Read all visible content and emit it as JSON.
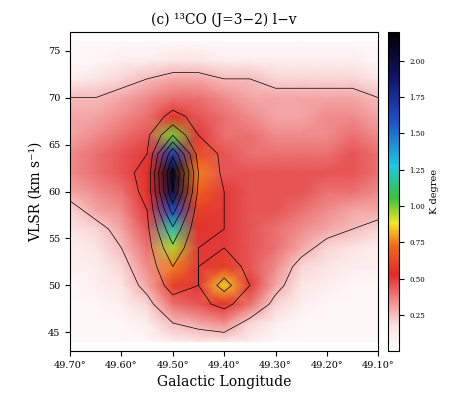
{
  "chart_data": {
    "type": "heatmap",
    "title": "(c) ¹³CO (J=3−2) l−v",
    "x_label": "Galactic Longitude",
    "y_label": "VLSR (km s⁻¹)",
    "colorbar_label": "K degree",
    "x": [
      49.7,
      49.65,
      49.6,
      49.55,
      49.5,
      49.45,
      49.4,
      49.35,
      49.3,
      49.25,
      49.2,
      49.15,
      49.1
    ],
    "y": [
      44,
      46,
      48,
      50,
      52,
      54,
      56,
      58,
      60,
      62,
      64,
      66,
      68,
      70,
      72,
      74,
      76
    ],
    "cells": [
      [
        0.05,
        0.05,
        0.05,
        0.05,
        0.1,
        0.15,
        0.15,
        0.1,
        0.05,
        0.05,
        0.05,
        0.05,
        0.05
      ],
      [
        0.05,
        0.05,
        0.05,
        0.1,
        0.25,
        0.3,
        0.35,
        0.2,
        0.1,
        0.05,
        0.05,
        0.05,
        0.05
      ],
      [
        0.05,
        0.05,
        0.1,
        0.2,
        0.4,
        0.45,
        0.55,
        0.4,
        0.2,
        0.1,
        0.05,
        0.05,
        0.05
      ],
      [
        0.05,
        0.1,
        0.15,
        0.3,
        0.6,
        0.5,
        0.85,
        0.5,
        0.3,
        0.15,
        0.1,
        0.05,
        0.05
      ],
      [
        0.1,
        0.1,
        0.2,
        0.35,
        0.75,
        0.5,
        0.6,
        0.45,
        0.35,
        0.2,
        0.15,
        0.1,
        0.1
      ],
      [
        0.1,
        0.15,
        0.25,
        0.4,
        0.95,
        0.5,
        0.5,
        0.45,
        0.4,
        0.3,
        0.2,
        0.15,
        0.1
      ],
      [
        0.15,
        0.2,
        0.3,
        0.45,
        1.2,
        0.55,
        0.5,
        0.45,
        0.4,
        0.35,
        0.3,
        0.25,
        0.2
      ],
      [
        0.2,
        0.3,
        0.35,
        0.5,
        1.6,
        0.6,
        0.5,
        0.45,
        0.45,
        0.4,
        0.35,
        0.3,
        0.3
      ],
      [
        0.3,
        0.35,
        0.4,
        0.55,
        2.0,
        0.7,
        0.5,
        0.45,
        0.45,
        0.45,
        0.4,
        0.4,
        0.35
      ],
      [
        0.35,
        0.4,
        0.45,
        0.55,
        2.1,
        0.75,
        0.45,
        0.45,
        0.45,
        0.45,
        0.45,
        0.45,
        0.4
      ],
      [
        0.35,
        0.4,
        0.45,
        0.5,
        1.7,
        0.65,
        0.45,
        0.4,
        0.4,
        0.4,
        0.4,
        0.45,
        0.4
      ],
      [
        0.3,
        0.35,
        0.4,
        0.45,
        1.0,
        0.5,
        0.4,
        0.4,
        0.35,
        0.35,
        0.35,
        0.4,
        0.35
      ],
      [
        0.3,
        0.3,
        0.35,
        0.4,
        0.55,
        0.45,
        0.4,
        0.35,
        0.3,
        0.3,
        0.35,
        0.35,
        0.3
      ],
      [
        0.25,
        0.25,
        0.3,
        0.35,
        0.4,
        0.4,
        0.35,
        0.3,
        0.3,
        0.3,
        0.3,
        0.3,
        0.25
      ],
      [
        0.1,
        0.15,
        0.2,
        0.25,
        0.3,
        0.3,
        0.25,
        0.25,
        0.2,
        0.2,
        0.2,
        0.2,
        0.15
      ],
      [
        0.05,
        0.05,
        0.1,
        0.1,
        0.15,
        0.15,
        0.1,
        0.1,
        0.1,
        0.1,
        0.1,
        0.1,
        0.05
      ],
      [
        0.05,
        0.05,
        0.05,
        0.05,
        0.05,
        0.05,
        0.05,
        0.05,
        0.05,
        0.05,
        0.05,
        0.05,
        0.05
      ]
    ],
    "xlim": [
      49.7,
      49.1
    ],
    "xticks": [
      {
        "value": 49.7,
        "label": "49.70°"
      },
      {
        "value": 49.6,
        "label": "49.60°"
      },
      {
        "value": 49.5,
        "label": "49.50°"
      },
      {
        "value": 49.4,
        "label": "49.40°"
      },
      {
        "value": 49.3,
        "label": "49.30°"
      },
      {
        "value": 49.2,
        "label": "49.20°"
      },
      {
        "value": 49.1,
        "label": "49.10°"
      }
    ],
    "ylim": [
      43,
      77
    ],
    "yticks": [
      45,
      50,
      55,
      60,
      65,
      70,
      75
    ],
    "colorbar_lim": [
      0,
      2.2
    ],
    "colorbar_ticks": [
      {
        "value": 0.25,
        "label": "0.25"
      },
      {
        "value": 0.5,
        "label": "0.50"
      },
      {
        "value": 0.75,
        "label": "0.75"
      },
      {
        "value": 1.0,
        "label": "1.00"
      },
      {
        "value": 1.25,
        "label": "1.25"
      },
      {
        "value": 1.5,
        "label": "1.50"
      },
      {
        "value": 1.75,
        "label": "1.75"
      },
      {
        "value": 2.0,
        "label": "2.00"
      }
    ]
  }
}
